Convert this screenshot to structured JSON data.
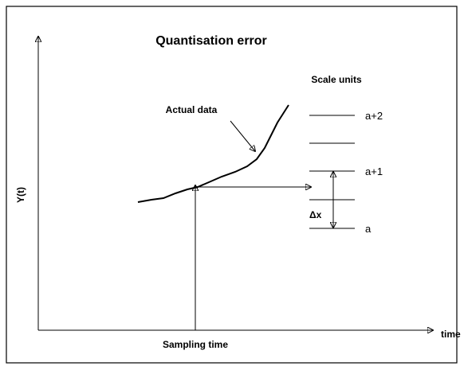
{
  "title": "Quantisation error",
  "scale_title": "Scale units",
  "curve_label": "Actual data",
  "levels": [
    "a+2",
    "a+1",
    "a"
  ],
  "delta_label": "Δx",
  "y_axis_label": "Y(t)",
  "x_axis_label": "time",
  "sampling_label": "Sampling time"
}
